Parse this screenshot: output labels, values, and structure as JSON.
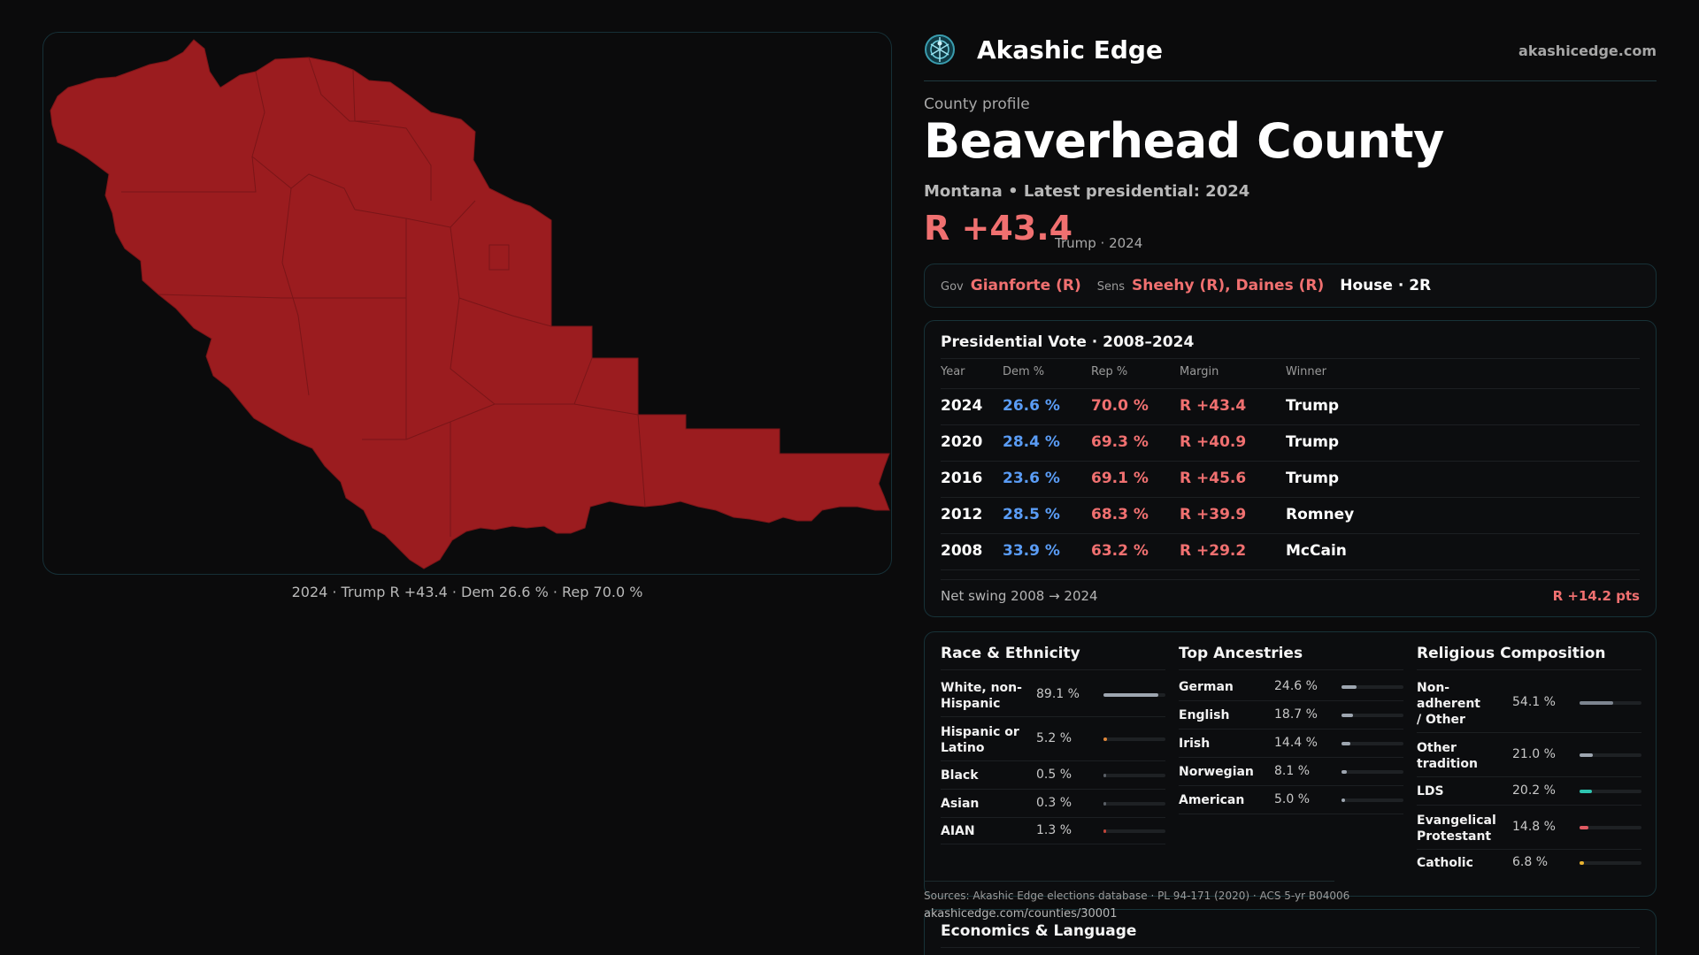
{
  "map": {
    "caption": "2024 · Trump R +43.4 · Dem 26.6 % · Rep 70.0 %",
    "fill_color": "#9b1c1f"
  },
  "brand": {
    "name": "Akashic Edge",
    "url": "akashicedge.com",
    "logo_icon": "compass-globe-icon"
  },
  "profile": {
    "eyebrow": "County profile",
    "title": "Beaverhead County",
    "subtitle": "Montana • Latest presidential: 2024",
    "margin": "R +43.4",
    "margin_note": "Trump · 2024"
  },
  "officials": {
    "gov_label": "Gov",
    "gov_value": "Gianforte (R)",
    "sens_label": "Sens",
    "sens_value": "Sheehy (R), Daines (R)",
    "house": "House · 2R"
  },
  "presidential": {
    "title": "Presidential Vote · 2008–2024",
    "headers": {
      "year": "Year",
      "dem": "Dem %",
      "rep": "Rep %",
      "margin": "Margin",
      "winner": "Winner"
    },
    "rows": [
      {
        "year": "2024",
        "dem": "26.6 %",
        "rep": "70.0 %",
        "margin": "R +43.4",
        "winner": "Trump"
      },
      {
        "year": "2020",
        "dem": "28.4 %",
        "rep": "69.3 %",
        "margin": "R +40.9",
        "winner": "Trump"
      },
      {
        "year": "2016",
        "dem": "23.6 %",
        "rep": "69.1 %",
        "margin": "R +45.6",
        "winner": "Trump"
      },
      {
        "year": "2012",
        "dem": "28.5 %",
        "rep": "68.3 %",
        "margin": "R +39.9",
        "winner": "Romney"
      },
      {
        "year": "2008",
        "dem": "33.9 %",
        "rep": "63.2 %",
        "margin": "R +29.2",
        "winner": "McCain"
      }
    ],
    "swing_label": "Net swing 2008 → 2024",
    "swing_value": "R +14.2 pts"
  },
  "race": {
    "title": "Race & Ethnicity",
    "items": [
      {
        "label": "White, non-Hispanic",
        "value": "89.1 %",
        "fraction": 0.891,
        "color": "#9ea6b0"
      },
      {
        "label": "Hispanic or Latino",
        "value": "5.2 %",
        "fraction": 0.052,
        "color": "#e0873a"
      },
      {
        "label": "Black",
        "value": "0.5 %",
        "fraction": 0.005,
        "color": "#5a5f66"
      },
      {
        "label": "Asian",
        "value": "0.3 %",
        "fraction": 0.003,
        "color": "#5a5f66"
      },
      {
        "label": "AIAN",
        "value": "1.3 %",
        "fraction": 0.013,
        "color": "#c0453a"
      }
    ]
  },
  "ancestry": {
    "title": "Top Ancestries",
    "items": [
      {
        "label": "German",
        "value": "24.6 %",
        "fraction": 0.246,
        "color": "#9ea6b0"
      },
      {
        "label": "English",
        "value": "18.7 %",
        "fraction": 0.187,
        "color": "#9ea6b0"
      },
      {
        "label": "Irish",
        "value": "14.4 %",
        "fraction": 0.144,
        "color": "#9ea6b0"
      },
      {
        "label": "Norwegian",
        "value": "8.1 %",
        "fraction": 0.081,
        "color": "#9ea6b0"
      },
      {
        "label": "American",
        "value": "5.0 %",
        "fraction": 0.05,
        "color": "#9ea6b0"
      }
    ]
  },
  "religion": {
    "title": "Religious Composition",
    "items": [
      {
        "label": "Non-adherent / Other",
        "value": "54.1 %",
        "fraction": 0.541,
        "color": "#7d8590"
      },
      {
        "label": "Other tradition",
        "value": "21.0 %",
        "fraction": 0.21,
        "color": "#9ea6b0"
      },
      {
        "label": "LDS",
        "value": "20.2 %",
        "fraction": 0.202,
        "color": "#2ec4b0"
      },
      {
        "label": "Evangelical Protestant",
        "value": "14.8 %",
        "fraction": 0.148,
        "color": "#e05a62"
      },
      {
        "label": "Catholic",
        "value": "6.8 %",
        "fraction": 0.068,
        "color": "#e8b230"
      }
    ]
  },
  "footer": {
    "sources": "Sources: Akashic Edge elections database · PL 94-171 (2020) · ACS 5-yr B04006",
    "url": "akashicedge.com/counties/30001"
  },
  "economics": {
    "title": "Economics & Language"
  }
}
